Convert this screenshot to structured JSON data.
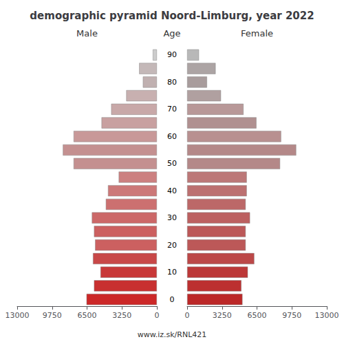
{
  "chart_data": {
    "type": "bar",
    "orientation": "horizontal",
    "title": "demographic pyramid Noord-Limburg, year 2022",
    "ylabel": "Age",
    "footer": "www.iz.sk/RNL421",
    "categories": [
      "90",
      null,
      "80",
      null,
      "70",
      null,
      "60",
      null,
      "50",
      null,
      "40",
      null,
      "30",
      null,
      "20",
      null,
      "10",
      null,
      "0"
    ],
    "series": [
      {
        "name": "Male",
        "values": [
          380,
          1650,
          1300,
          2850,
          4250,
          5150,
          7750,
          8750,
          7750,
          3550,
          4550,
          4750,
          6050,
          5850,
          5750,
          5950,
          5250,
          5850,
          6550
        ],
        "colors": [
          "#cccccc",
          "#c4b8b8",
          "#c0b0b0",
          "#c8b0b0",
          "#c8a8a8",
          "#c8a0a0",
          "#c89898",
          "#c49090",
          "#c49090",
          "#cc8080",
          "#cc7878",
          "#cc7070",
          "#cc6868",
          "#cc6060",
          "#cc6060",
          "#c84848",
          "#c83838",
          "#c83030",
          "#cc2828"
        ]
      },
      {
        "name": "Female",
        "values": [
          1100,
          2650,
          1850,
          3150,
          5250,
          6450,
          8750,
          10150,
          8650,
          5550,
          5550,
          5450,
          5850,
          5450,
          5450,
          6250,
          5650,
          5050,
          5150
        ],
        "colors": [
          "#b8b8b8",
          "#aca4a4",
          "#a89c9c",
          "#b0a0a0",
          "#b89898",
          "#b09090",
          "#b89090",
          "#b48888",
          "#b48888",
          "#bc7878",
          "#bc7070",
          "#bc6868",
          "#bc6060",
          "#bc5858",
          "#bc5858",
          "#bc4848",
          "#bc3838",
          "#bc3030",
          "#bc2828"
        ]
      }
    ],
    "xlim": [
      0,
      13000
    ],
    "xticks": [
      0,
      3250,
      6500,
      9750,
      13000
    ],
    "grid": false
  }
}
